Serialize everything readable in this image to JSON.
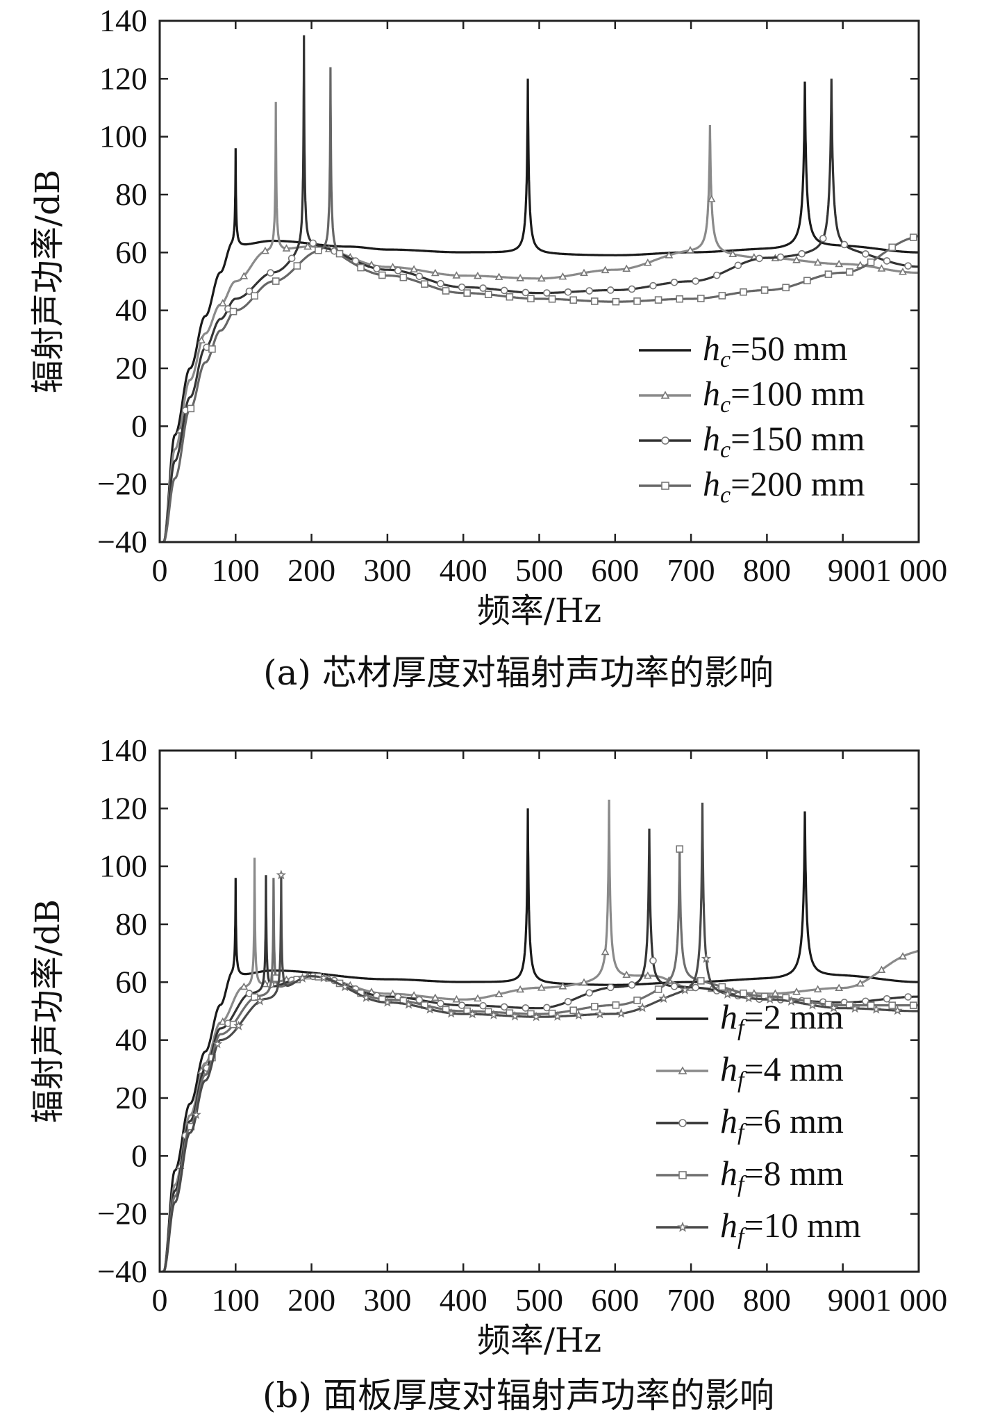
{
  "figure": {
    "chart_data": [
      {
        "type": "line",
        "panel": "a",
        "caption": "(a) 芯材厚度对辐射声功率的影响",
        "title": "",
        "xlabel": "频率/Hz",
        "ylabel": "辐射声功率/dB",
        "xlim": [
          0,
          1000
        ],
        "ylim": [
          -40,
          140
        ],
        "xticks": [
          0,
          100,
          200,
          300,
          400,
          500,
          600,
          700,
          800,
          900
        ],
        "xtick_labels": [
          "0",
          "100",
          "200",
          "300",
          "400",
          "500",
          "600",
          "700",
          "800",
          "9001 000"
        ],
        "yticks": [
          -40,
          -20,
          0,
          20,
          40,
          60,
          80,
          100,
          120,
          140
        ],
        "ytick_labels": [
          "−40",
          "−20",
          "0",
          "20",
          "40",
          "60",
          "80",
          "100",
          "120",
          "140"
        ],
        "grid": false,
        "legend_position": "center-right",
        "series": [
          {
            "var": "h",
            "sub": "c",
            "rest": "=50 mm",
            "color": "#1a1a1a",
            "marker": "none",
            "peaks": [
              {
                "f": 100,
                "db": 96
              },
              {
                "f": 485,
                "db": 120
              },
              {
                "f": 850,
                "db": 119
              }
            ],
            "baseline": [
              [
                5,
                -40
              ],
              [
                20,
                -3
              ],
              [
                40,
                20
              ],
              [
                60,
                38
              ],
              [
                80,
                53
              ],
              [
                95,
                62
              ],
              [
                150,
                64
              ],
              [
                250,
                62
              ],
              [
                300,
                61
              ],
              [
                400,
                60
              ],
              [
                600,
                59
              ],
              [
                700,
                60
              ],
              [
                800,
                61
              ],
              [
                900,
                62
              ],
              [
                1000,
                60
              ]
            ]
          },
          {
            "var": "h",
            "sub": "c",
            "rest": "=100 mm",
            "color": "#8a8a8a",
            "marker": "triangle",
            "peaks": [
              {
                "f": 153,
                "db": 112
              },
              {
                "f": 725,
                "db": 104
              }
            ],
            "baseline": [
              [
                5,
                -40
              ],
              [
                20,
                -8
              ],
              [
                40,
                16
              ],
              [
                60,
                32
              ],
              [
                80,
                42
              ],
              [
                100,
                50
              ],
              [
                140,
                60
              ],
              [
                200,
                62
              ],
              [
                300,
                55
              ],
              [
                400,
                52
              ],
              [
                500,
                51
              ],
              [
                600,
                54
              ],
              [
                700,
                60
              ],
              [
                800,
                58
              ],
              [
                900,
                56
              ],
              [
                1000,
                53
              ]
            ]
          },
          {
            "var": "h",
            "sub": "c",
            "rest": "=150 mm",
            "color": "#333333",
            "marker": "circle",
            "peaks": [
              {
                "f": 190,
                "db": 135
              },
              {
                "f": 885,
                "db": 120
              }
            ],
            "baseline": [
              [
                5,
                -40
              ],
              [
                20,
                -12
              ],
              [
                40,
                10
              ],
              [
                60,
                27
              ],
              [
                80,
                37
              ],
              [
                100,
                44
              ],
              [
                150,
                53
              ],
              [
                200,
                62
              ],
              [
                300,
                54
              ],
              [
                400,
                48
              ],
              [
                500,
                46
              ],
              [
                600,
                47
              ],
              [
                700,
                50
              ],
              [
                800,
                58
              ],
              [
                900,
                60
              ],
              [
                1000,
                55
              ]
            ]
          },
          {
            "var": "h",
            "sub": "c",
            "rest": "=200 mm",
            "color": "#666666",
            "marker": "square",
            "peaks": [
              {
                "f": 225,
                "db": 124
              },
              {
                "f": 1010,
                "db": 72
              }
            ],
            "baseline": [
              [
                5,
                -40
              ],
              [
                20,
                -18
              ],
              [
                40,
                6
              ],
              [
                60,
                22
              ],
              [
                80,
                33
              ],
              [
                100,
                40
              ],
              [
                150,
                50
              ],
              [
                210,
                60
              ],
              [
                300,
                52
              ],
              [
                400,
                46
              ],
              [
                500,
                44
              ],
              [
                600,
                43
              ],
              [
                700,
                44
              ],
              [
                800,
                47
              ],
              [
                900,
                53
              ],
              [
                1000,
                65
              ]
            ]
          }
        ]
      },
      {
        "type": "line",
        "panel": "b",
        "caption": "(b) 面板厚度对辐射声功率的影响",
        "title": "",
        "xlabel": "频率/Hz",
        "ylabel": "辐射声功率/dB",
        "xlim": [
          0,
          1000
        ],
        "ylim": [
          -40,
          140
        ],
        "xticks": [
          0,
          100,
          200,
          300,
          400,
          500,
          600,
          700,
          800,
          900
        ],
        "xtick_labels": [
          "0",
          "100",
          "200",
          "300",
          "400",
          "500",
          "600",
          "700",
          "800",
          "9001 000"
        ],
        "yticks": [
          -40,
          -20,
          0,
          20,
          40,
          60,
          80,
          100,
          120,
          140
        ],
        "ytick_labels": [
          "−40",
          "−20",
          "0",
          "20",
          "40",
          "60",
          "80",
          "100",
          "120",
          "140"
        ],
        "grid": false,
        "legend_position": "bottom-right",
        "series": [
          {
            "var": "h",
            "sub": "f",
            "rest": "=2 mm",
            "color": "#1a1a1a",
            "marker": "none",
            "peaks": [
              {
                "f": 100,
                "db": 96
              },
              {
                "f": 485,
                "db": 120
              },
              {
                "f": 850,
                "db": 119
              }
            ],
            "baseline": [
              [
                5,
                -40
              ],
              [
                20,
                -5
              ],
              [
                40,
                18
              ],
              [
                60,
                36
              ],
              [
                80,
                52
              ],
              [
                95,
                62
              ],
              [
                150,
                64
              ],
              [
                300,
                61
              ],
              [
                400,
                60
              ],
              [
                600,
                59
              ],
              [
                700,
                60
              ],
              [
                800,
                61
              ],
              [
                900,
                62
              ],
              [
                1000,
                60
              ]
            ]
          },
          {
            "var": "h",
            "sub": "f",
            "rest": "=4 mm",
            "color": "#8a8a8a",
            "marker": "triangle",
            "peaks": [
              {
                "f": 125,
                "db": 103
              },
              {
                "f": 592,
                "db": 123
              },
              {
                "f": 1010,
                "db": 78
              }
            ],
            "baseline": [
              [
                5,
                -40
              ],
              [
                20,
                -10
              ],
              [
                40,
                14
              ],
              [
                60,
                32
              ],
              [
                80,
                46
              ],
              [
                110,
                58
              ],
              [
                200,
                62
              ],
              [
                300,
                56
              ],
              [
                400,
                54
              ],
              [
                500,
                58
              ],
              [
                650,
                62
              ],
              [
                700,
                58
              ],
              [
                800,
                56
              ],
              [
                900,
                58
              ],
              [
                1000,
                70
              ]
            ]
          },
          {
            "var": "h",
            "sub": "f",
            "rest": "=6 mm",
            "color": "#333333",
            "marker": "circle",
            "peaks": [
              {
                "f": 140,
                "db": 97
              },
              {
                "f": 645,
                "db": 113
              }
            ],
            "baseline": [
              [
                5,
                -40
              ],
              [
                20,
                -12
              ],
              [
                40,
                12
              ],
              [
                60,
                30
              ],
              [
                80,
                44
              ],
              [
                120,
                56
              ],
              [
                200,
                62
              ],
              [
                300,
                55
              ],
              [
                400,
                52
              ],
              [
                500,
                51
              ],
              [
                600,
                58
              ],
              [
                700,
                58
              ],
              [
                800,
                54
              ],
              [
                900,
                53
              ],
              [
                1000,
                55
              ]
            ]
          },
          {
            "var": "h",
            "sub": "f",
            "rest": "=8 mm",
            "color": "#6e6e6e",
            "marker": "square",
            "peaks": [
              {
                "f": 150,
                "db": 96
              },
              {
                "f": 685,
                "db": 106
              }
            ],
            "baseline": [
              [
                5,
                -40
              ],
              [
                20,
                -14
              ],
              [
                40,
                10
              ],
              [
                60,
                28
              ],
              [
                80,
                42
              ],
              [
                130,
                55
              ],
              [
                200,
                62
              ],
              [
                300,
                54
              ],
              [
                400,
                50
              ],
              [
                500,
                49
              ],
              [
                600,
                52
              ],
              [
                700,
                60
              ],
              [
                800,
                55
              ],
              [
                900,
                52
              ],
              [
                1000,
                52
              ]
            ]
          },
          {
            "var": "h",
            "sub": "f",
            "rest": "=10 mm",
            "color": "#4a4a4a",
            "marker": "star",
            "peaks": [
              {
                "f": 160,
                "db": 97
              },
              {
                "f": 715,
                "db": 122
              }
            ],
            "baseline": [
              [
                5,
                -40
              ],
              [
                20,
                -16
              ],
              [
                40,
                8
              ],
              [
                60,
                26
              ],
              [
                80,
                40
              ],
              [
                140,
                54
              ],
              [
                200,
                62
              ],
              [
                300,
                53
              ],
              [
                400,
                49
              ],
              [
                500,
                48
              ],
              [
                600,
                49
              ],
              [
                700,
                56
              ],
              [
                800,
                54
              ],
              [
                900,
                51
              ],
              [
                1000,
                50
              ]
            ]
          }
        ]
      }
    ]
  }
}
